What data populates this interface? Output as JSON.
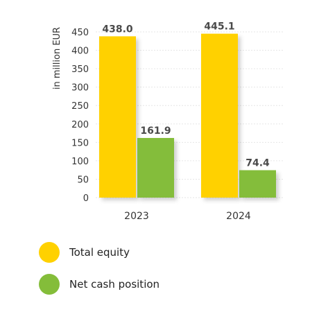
{
  "chart_data": {
    "type": "bar",
    "categories": [
      "2023",
      "2024"
    ],
    "series": [
      {
        "name": "Total equity",
        "values": [
          438.0,
          445.1
        ],
        "labels": [
          "438.0",
          "445.1"
        ],
        "color": "#FFD100"
      },
      {
        "name": "Net cash position",
        "values": [
          161.9,
          74.4
        ],
        "labels": [
          "161.9",
          "74.4"
        ],
        "color": "#84BD3A"
      }
    ],
    "ylabel": "in million EUR",
    "ylim": [
      0,
      450
    ],
    "yticks": [
      0,
      50,
      100,
      150,
      200,
      250,
      300,
      350,
      400,
      450
    ],
    "grid": true,
    "legend_position": "bottom-left"
  }
}
